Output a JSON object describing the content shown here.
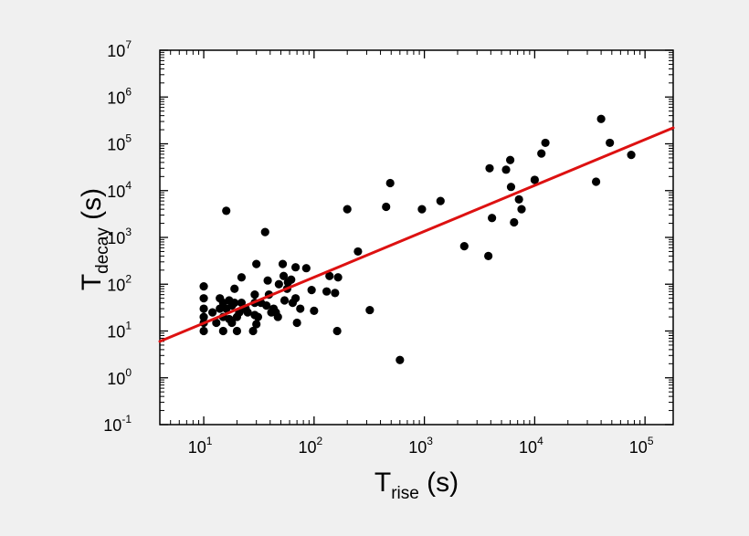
{
  "chart_data": {
    "type": "scatter",
    "xlabel": {
      "base": "T",
      "sub": "rise",
      "unit": " (s)"
    },
    "ylabel": {
      "base": "T",
      "sub": "decay",
      "unit": " (s)"
    },
    "xscale": "log",
    "yscale": "log",
    "xlim": [
      4,
      180000
    ],
    "ylim": [
      0.1,
      10000000
    ],
    "grid": false,
    "legend": "none",
    "x_ticks": [
      {
        "base": "10",
        "exp": "1",
        "value": 10
      },
      {
        "base": "10",
        "exp": "2",
        "value": 100
      },
      {
        "base": "10",
        "exp": "3",
        "value": 1000
      },
      {
        "base": "10",
        "exp": "4",
        "value": 10000
      },
      {
        "base": "10",
        "exp": "5",
        "value": 100000
      }
    ],
    "y_ticks": [
      {
        "base": "10",
        "exp": "-1",
        "value": 0.1
      },
      {
        "base": "10",
        "exp": "0",
        "value": 1
      },
      {
        "base": "10",
        "exp": "1",
        "value": 10
      },
      {
        "base": "10",
        "exp": "2",
        "value": 100
      },
      {
        "base": "10",
        "exp": "3",
        "value": 1000
      },
      {
        "base": "10",
        "exp": "4",
        "value": 10000
      },
      {
        "base": "10",
        "exp": "5",
        "value": 100000
      },
      {
        "base": "10",
        "exp": "6",
        "value": 1000000
      },
      {
        "base": "10",
        "exp": "7",
        "value": 10000000
      }
    ],
    "points": [
      [
        10,
        90
      ],
      [
        10,
        50
      ],
      [
        10,
        30
      ],
      [
        10,
        20
      ],
      [
        10,
        15
      ],
      [
        10,
        10
      ],
      [
        12,
        25
      ],
      [
        13,
        15
      ],
      [
        14,
        30
      ],
      [
        14,
        50
      ],
      [
        15,
        10
      ],
      [
        15,
        20
      ],
      [
        15,
        40
      ],
      [
        16,
        3700
      ],
      [
        16,
        30
      ],
      [
        17,
        18
      ],
      [
        17,
        45
      ],
      [
        18,
        35
      ],
      [
        18,
        15
      ],
      [
        19,
        80
      ],
      [
        19,
        40
      ],
      [
        20,
        20
      ],
      [
        20,
        10
      ],
      [
        21,
        25
      ],
      [
        22,
        140
      ],
      [
        22,
        40
      ],
      [
        24,
        30
      ],
      [
        25,
        25
      ],
      [
        28,
        10
      ],
      [
        29,
        22
      ],
      [
        29,
        60
      ],
      [
        29,
        40
      ],
      [
        30,
        270
      ],
      [
        30,
        14
      ],
      [
        31,
        20
      ],
      [
        33,
        40
      ],
      [
        36,
        1300
      ],
      [
        37,
        35
      ],
      [
        38,
        120
      ],
      [
        39,
        60
      ],
      [
        41,
        25
      ],
      [
        43,
        30
      ],
      [
        45,
        25
      ],
      [
        47,
        20
      ],
      [
        48,
        100
      ],
      [
        52,
        270
      ],
      [
        53,
        150
      ],
      [
        54,
        45
      ],
      [
        57,
        80
      ],
      [
        58,
        110
      ],
      [
        62,
        125
      ],
      [
        64,
        40
      ],
      [
        68,
        230
      ],
      [
        68,
        50
      ],
      [
        70,
        15
      ],
      [
        75,
        30
      ],
      [
        85,
        220
      ],
      [
        95,
        75
      ],
      [
        100,
        27
      ],
      [
        130,
        70
      ],
      [
        138,
        150
      ],
      [
        155,
        65
      ],
      [
        162,
        10
      ],
      [
        165,
        140
      ],
      [
        200,
        4000
      ],
      [
        250,
        500
      ],
      [
        320,
        28
      ],
      [
        450,
        4500
      ],
      [
        490,
        14500
      ],
      [
        600,
        2.4
      ],
      [
        950,
        4000
      ],
      [
        1400,
        6000
      ],
      [
        2300,
        650
      ],
      [
        3800,
        400
      ],
      [
        3900,
        30000
      ],
      [
        4100,
        2600
      ],
      [
        5500,
        28000
      ],
      [
        6000,
        45000
      ],
      [
        6100,
        12000
      ],
      [
        6500,
        2100
      ],
      [
        7200,
        6500
      ],
      [
        7600,
        4000
      ],
      [
        10000,
        17000
      ],
      [
        11500,
        62000
      ],
      [
        12500,
        105000
      ],
      [
        36000,
        15500
      ],
      [
        40000,
        340000
      ],
      [
        48000,
        105000
      ],
      [
        75000,
        58000
      ]
    ],
    "fit_line": {
      "x": [
        4,
        180000
      ],
      "y": [
        6,
        220000
      ],
      "color": "#dd1111"
    },
    "marker_color": "#000000"
  }
}
